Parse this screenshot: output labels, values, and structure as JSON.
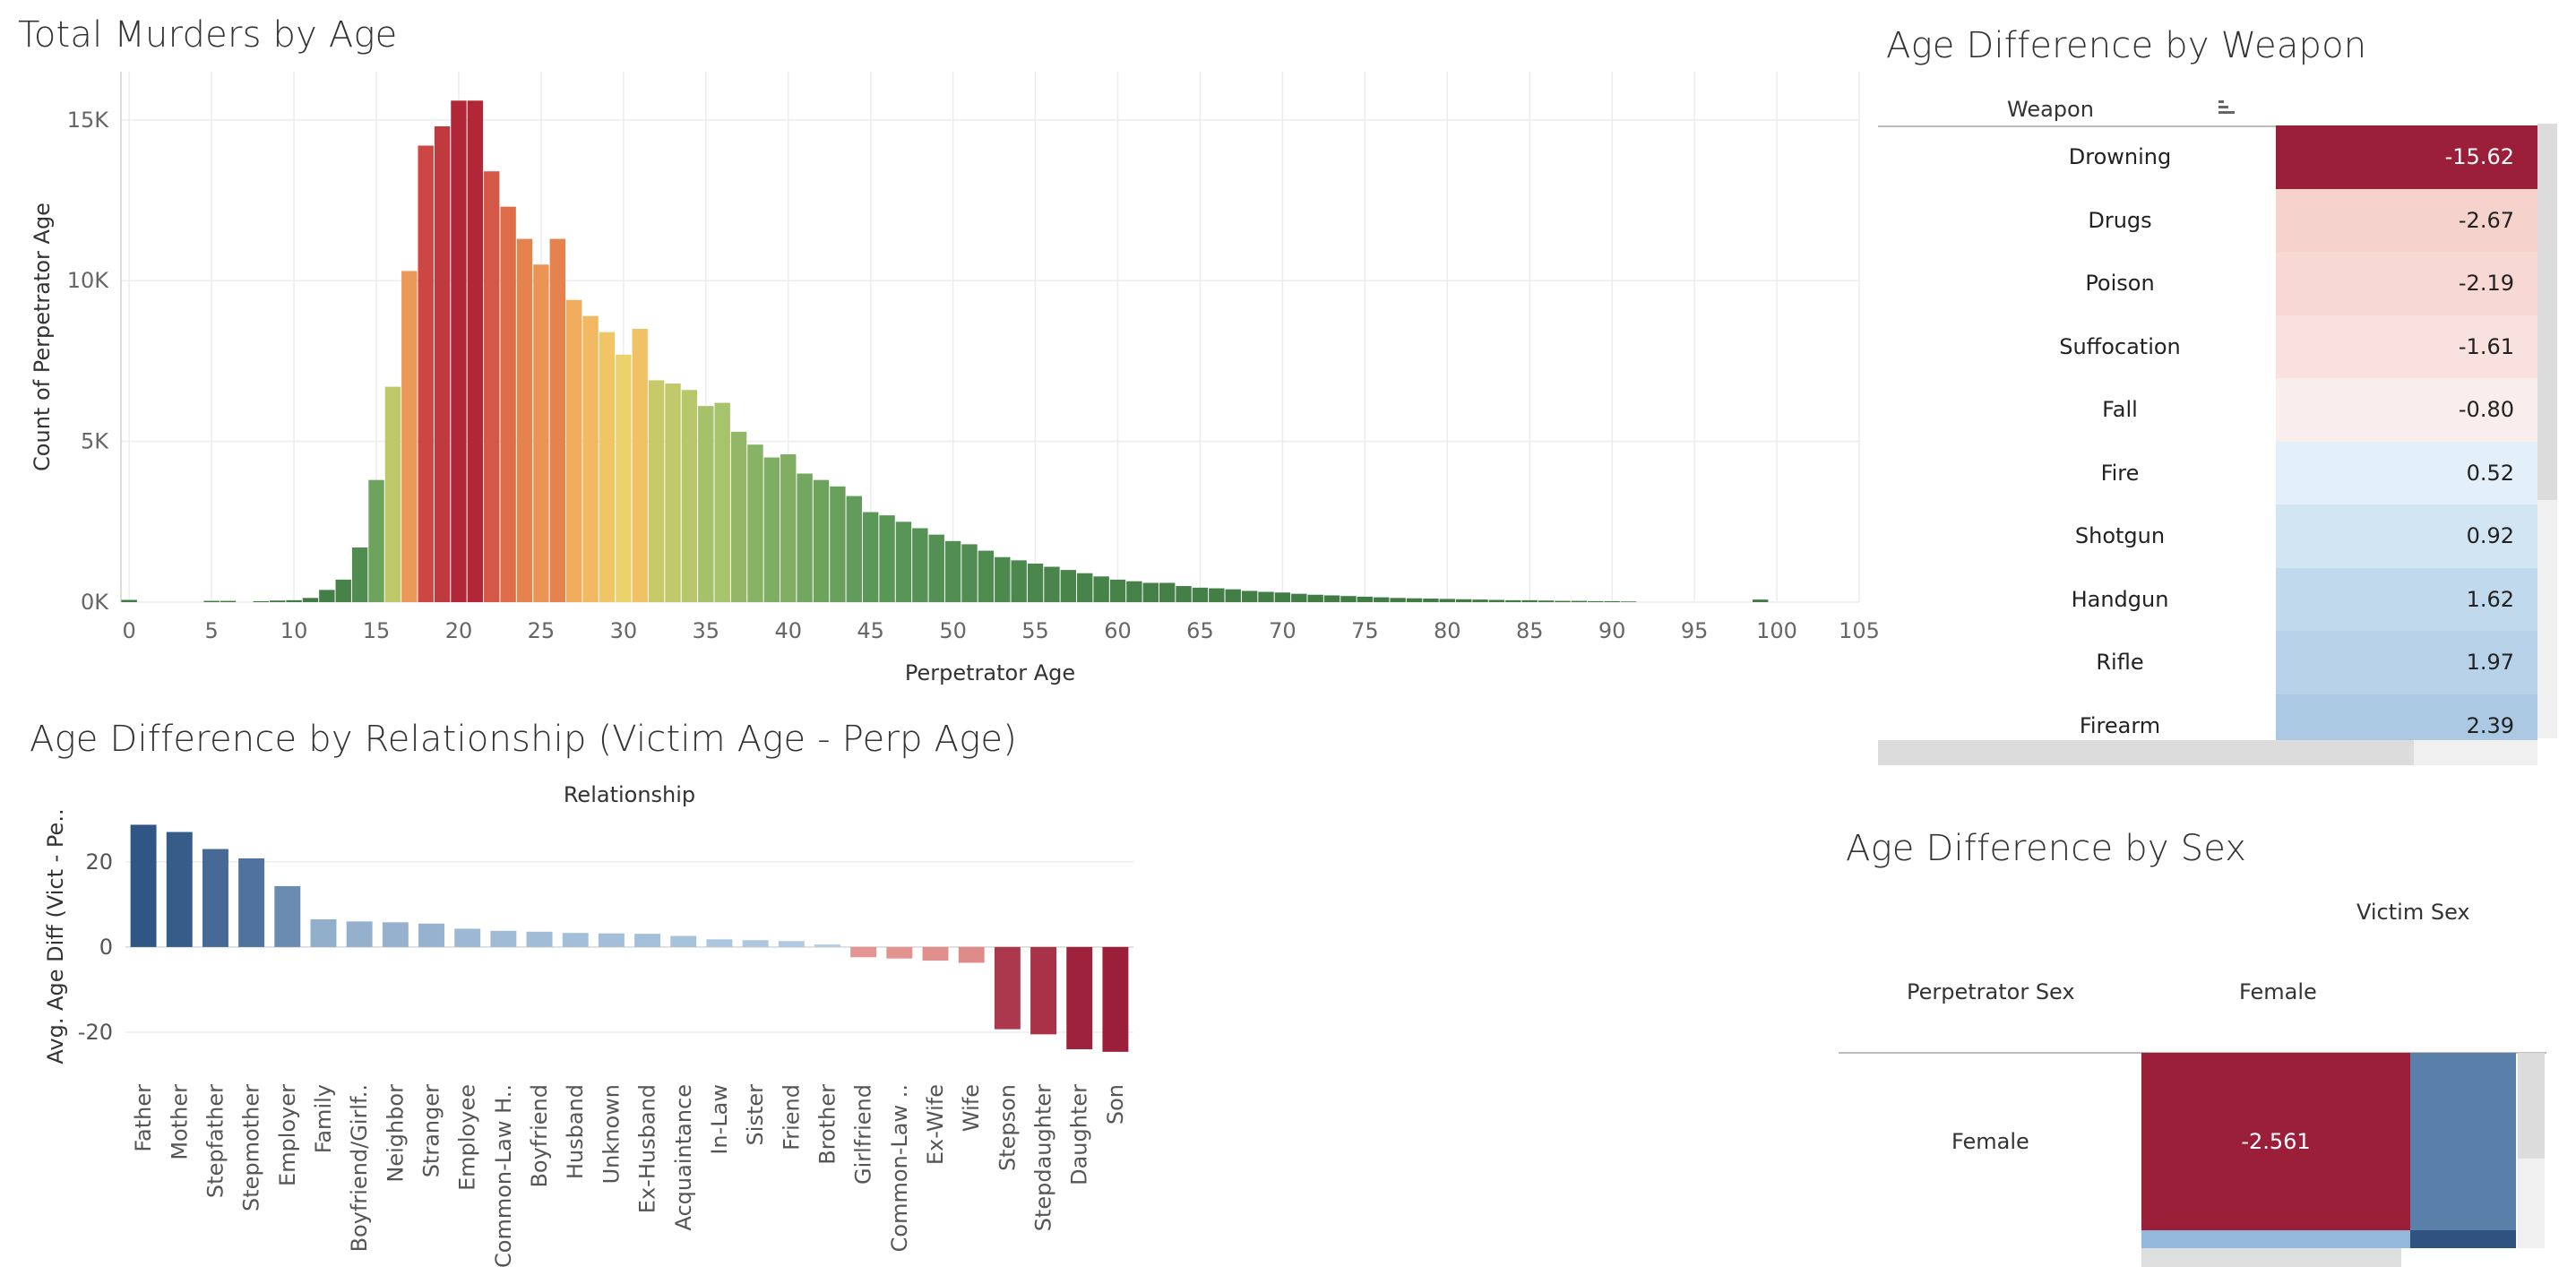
{
  "chart_data": [
    {
      "type": "bar",
      "title": "Total Murders by Age",
      "xlabel": "Perpetrator Age",
      "ylabel": "Count of Perpetrator Age",
      "ylim": [
        0,
        16500
      ],
      "xlim": [
        -0.5,
        105
      ],
      "y_ticks": [
        "0K",
        "5K",
        "10K",
        "15K"
      ],
      "y_tick_values": [
        0,
        5000,
        10000,
        15000
      ],
      "x_ticks": [
        0,
        5,
        10,
        15,
        20,
        25,
        30,
        35,
        40,
        45,
        50,
        55,
        60,
        65,
        70,
        75,
        80,
        85,
        90,
        95,
        100,
        105
      ],
      "grid": true,
      "color_scale": "diverging red-yellow-green by count",
      "x": [
        0,
        1,
        2,
        3,
        4,
        5,
        6,
        7,
        8,
        9,
        10,
        11,
        12,
        13,
        14,
        15,
        16,
        17,
        18,
        19,
        20,
        21,
        22,
        23,
        24,
        25,
        26,
        27,
        28,
        29,
        30,
        31,
        32,
        33,
        34,
        35,
        36,
        37,
        38,
        39,
        40,
        41,
        42,
        43,
        44,
        45,
        46,
        47,
        48,
        49,
        50,
        51,
        52,
        53,
        54,
        55,
        56,
        57,
        58,
        59,
        60,
        61,
        62,
        63,
        64,
        65,
        66,
        67,
        68,
        69,
        70,
        71,
        72,
        73,
        74,
        75,
        76,
        77,
        78,
        79,
        80,
        81,
        82,
        83,
        84,
        85,
        86,
        87,
        88,
        89,
        90,
        91,
        92,
        93,
        94,
        95,
        96,
        97,
        98,
        99
      ],
      "values": [
        70,
        0,
        0,
        0,
        0,
        40,
        40,
        0,
        30,
        50,
        60,
        130,
        380,
        700,
        1700,
        3800,
        6700,
        10300,
        14200,
        14800,
        15600,
        15600,
        13400,
        12300,
        11300,
        10500,
        11300,
        9400,
        8900,
        8400,
        7700,
        8500,
        6900,
        6800,
        6600,
        6100,
        6200,
        5300,
        4900,
        4500,
        4600,
        4000,
        3800,
        3600,
        3300,
        2800,
        2700,
        2500,
        2300,
        2100,
        1900,
        1800,
        1600,
        1400,
        1300,
        1200,
        1100,
        1000,
        900,
        800,
        700,
        650,
        600,
        600,
        500,
        450,
        430,
        400,
        350,
        320,
        300,
        260,
        230,
        210,
        190,
        170,
        150,
        130,
        120,
        110,
        100,
        90,
        80,
        70,
        60,
        60,
        50,
        40,
        40,
        30,
        30,
        20,
        0,
        0,
        0,
        0,
        0,
        0,
        0,
        80
      ]
    },
    {
      "type": "bar",
      "title": "Age Difference by Relationship (Victim Age - Perp Age)",
      "xlabel": "Relationship",
      "ylabel": "Avg. Age Diff (Vict - Pe..",
      "ylim": [
        -28,
        33
      ],
      "y_ticks": [
        -20,
        0,
        20
      ],
      "grid": true,
      "categories": [
        "Father",
        "Mother",
        "Stepfather",
        "Stepmother",
        "Employer",
        "Family",
        "Boyfriend/Girlf..",
        "Neighbor",
        "Stranger",
        "Employee",
        "Common-Law H..",
        "Boyfriend",
        "Husband",
        "Unknown",
        "Ex-Husband",
        "Acquaintance",
        "In-Law",
        "Sister",
        "Friend",
        "Brother",
        "Girlfriend",
        "Common-Law ..",
        "Ex-Wife",
        "Wife",
        "Stepson",
        "Stepdaughter",
        "Daughter",
        "Son"
      ],
      "values": [
        28.7,
        27.0,
        23.0,
        20.8,
        14.3,
        6.5,
        6.0,
        5.8,
        5.5,
        4.3,
        3.8,
        3.6,
        3.3,
        3.2,
        3.1,
        2.6,
        1.8,
        1.6,
        1.4,
        0.6,
        -2.4,
        -2.7,
        -3.2,
        -3.7,
        -19.3,
        -20.5,
        -24.0,
        -24.6
      ]
    },
    {
      "type": "table",
      "title": "Age Difference by Weapon",
      "column_header": "Weapon",
      "rows": [
        {
          "label": "Drowning",
          "value": -15.62,
          "text": "-15.62",
          "color": "#9c1f3a"
        },
        {
          "label": "Drugs",
          "value": -2.67,
          "text": "-2.67",
          "color": "#f6d2cc"
        },
        {
          "label": "Poison",
          "value": -2.19,
          "text": "-2.19",
          "color": "#f7d8d3"
        },
        {
          "label": "Suffocation",
          "value": -1.61,
          "text": "-1.61",
          "color": "#f8e1de"
        },
        {
          "label": "Fall",
          "value": -0.8,
          "text": "-0.80",
          "color": "#faeeec"
        },
        {
          "label": "Fire",
          "value": 0.52,
          "text": "0.52",
          "color": "#e3f0f9"
        },
        {
          "label": "Shotgun",
          "value": 0.92,
          "text": "0.92",
          "color": "#d2e5f3"
        },
        {
          "label": "Handgun",
          "value": 1.62,
          "text": "1.62",
          "color": "#c0d9ec"
        },
        {
          "label": "Rifle",
          "value": 1.97,
          "text": "1.97",
          "color": "#b7d2e8"
        },
        {
          "label": "Firearm",
          "value": 2.39,
          "text": "2.39",
          "color": "#abc9e3"
        }
      ]
    },
    {
      "type": "heatmap",
      "title": "Age Difference by Sex",
      "column_header": "Victim Sex",
      "row_header": "Perpetrator Sex",
      "columns": [
        "Female"
      ],
      "rows": [
        "Female"
      ],
      "cell_text": "-2.561",
      "cell_value": -2.561,
      "cell_color": "#9c1f3a",
      "adjacent_color": "#5a80aa",
      "bottom_strip_colors": [
        "#93b8db",
        "#2f5280"
      ]
    }
  ]
}
